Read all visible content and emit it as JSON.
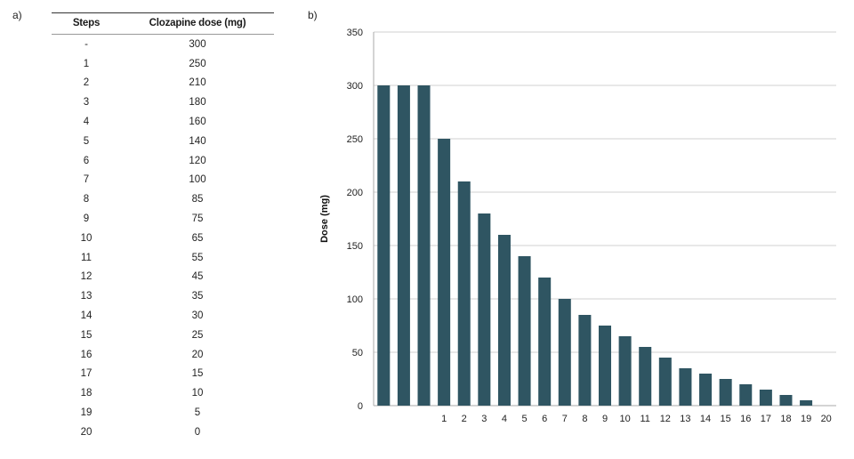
{
  "panels": {
    "a": "a)",
    "b": "b)"
  },
  "table": {
    "headers": [
      "Steps",
      "Clozapine dose (mg)"
    ],
    "rows": [
      [
        "-",
        "300"
      ],
      [
        "1",
        "250"
      ],
      [
        "2",
        "210"
      ],
      [
        "3",
        "180"
      ],
      [
        "4",
        "160"
      ],
      [
        "5",
        "140"
      ],
      [
        "6",
        "120"
      ],
      [
        "7",
        "100"
      ],
      [
        "8",
        "85"
      ],
      [
        "9",
        "75"
      ],
      [
        "10",
        "65"
      ],
      [
        "11",
        "55"
      ],
      [
        "12",
        "45"
      ],
      [
        "13",
        "35"
      ],
      [
        "14",
        "30"
      ],
      [
        "15",
        "25"
      ],
      [
        "16",
        "20"
      ],
      [
        "17",
        "15"
      ],
      [
        "18",
        "10"
      ],
      [
        "19",
        "5"
      ],
      [
        "20",
        "0"
      ]
    ]
  },
  "chart_data": {
    "type": "bar",
    "categories": [
      "",
      "",
      "",
      "1",
      "2",
      "3",
      "4",
      "5",
      "6",
      "7",
      "8",
      "9",
      "10",
      "11",
      "12",
      "13",
      "14",
      "15",
      "16",
      "17",
      "18",
      "19",
      "20"
    ],
    "values": [
      300,
      300,
      300,
      250,
      210,
      180,
      160,
      140,
      120,
      100,
      85,
      75,
      65,
      55,
      45,
      35,
      30,
      25,
      20,
      15,
      10,
      5,
      0
    ],
    "ylabel": "Dose (mg)",
    "xlabel": "",
    "ylim": [
      0,
      350
    ],
    "yticks": [
      0,
      50,
      100,
      150,
      200,
      250,
      300,
      350
    ],
    "grid": true,
    "colors": {
      "bar": "#2f5562",
      "grid": "#d2d2d2",
      "axis": "#aaaaaa"
    }
  }
}
